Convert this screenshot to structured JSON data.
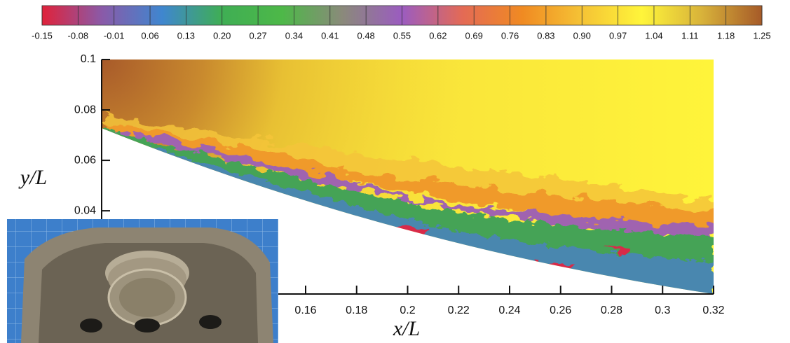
{
  "chart_data": {
    "type": "contour",
    "x_label": "x/L",
    "y_label": "y/L",
    "xlim": [
      0.08,
      0.32
    ],
    "ylim": [
      0.007,
      0.1
    ],
    "xticks": [
      0.16,
      0.18,
      0.2,
      0.22,
      0.24,
      0.26,
      0.28,
      0.3,
      0.32
    ],
    "yticks": [
      0.04,
      0.06,
      0.08,
      0.1
    ],
    "colorbar": {
      "lim": [
        -0.15,
        1.25
      ],
      "ticks": [
        -0.15,
        -0.08,
        -0.01,
        0.06,
        0.13,
        {
          "value": 0.2,
          "label": "0.20"
        },
        0.27,
        0.34,
        0.41,
        0.48,
        0.55,
        0.62,
        0.69,
        0.76,
        0.83,
        {
          "value": 0.9,
          "label": "0.90"
        },
        0.97,
        1.04,
        1.11,
        1.18,
        1.25
      ],
      "colormap": [
        "#e0223a",
        "#8a5aa8",
        "#3f86cf",
        "#3fae54",
        "#4db848",
        "#8a8a7a",
        "#9b5cc0",
        "#e36a56",
        "#f08a22",
        "#f5c335",
        "#fff53a",
        "#d8b23a",
        "#a65a28"
      ]
    }
  }
}
